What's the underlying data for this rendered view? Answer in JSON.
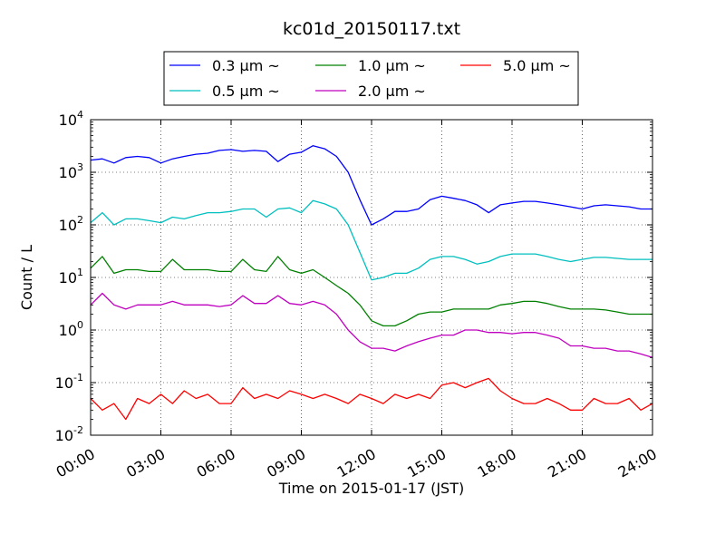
{
  "chart_data": {
    "type": "line",
    "title": "kc01d_20150117.txt",
    "xlabel": "Time on 2015-01-17 (JST)",
    "ylabel": "Count / L",
    "y_scale": "log",
    "ylim": [
      0.01,
      10000
    ],
    "y_tick_labels": [
      {
        "value": 0.01,
        "base": "10",
        "exp": "-2"
      },
      {
        "value": 0.1,
        "base": "10",
        "exp": "-1"
      },
      {
        "value": 1,
        "base": "10",
        "exp": "0"
      },
      {
        "value": 10,
        "base": "10",
        "exp": "1"
      },
      {
        "value": 100,
        "base": "10",
        "exp": "2"
      },
      {
        "value": 1000,
        "base": "10",
        "exp": "3"
      },
      {
        "value": 10000,
        "base": "10",
        "exp": "4"
      }
    ],
    "xlim": [
      "00:00",
      "24:00"
    ],
    "x_tick_labels": [
      "00:00",
      "03:00",
      "06:00",
      "09:00",
      "12:00",
      "15:00",
      "18:00",
      "21:00",
      "24:00"
    ],
    "grid": true,
    "legend_position": "top-center",
    "series": [
      {
        "name": "0.3 μm ~",
        "color": "#0000ff",
        "points": [
          [
            "00:00",
            1700
          ],
          [
            "00:30",
            1800
          ],
          [
            "01:00",
            1500
          ],
          [
            "01:30",
            1900
          ],
          [
            "02:00",
            2000
          ],
          [
            "02:30",
            1900
          ],
          [
            "03:00",
            1500
          ],
          [
            "03:30",
            1800
          ],
          [
            "04:00",
            2000
          ],
          [
            "04:30",
            2200
          ],
          [
            "05:00",
            2300
          ],
          [
            "05:30",
            2600
          ],
          [
            "06:00",
            2700
          ],
          [
            "06:30",
            2500
          ],
          [
            "07:00",
            2600
          ],
          [
            "07:30",
            2500
          ],
          [
            "08:00",
            1600
          ],
          [
            "08:30",
            2200
          ],
          [
            "09:00",
            2400
          ],
          [
            "09:30",
            3200
          ],
          [
            "10:00",
            2800
          ],
          [
            "10:30",
            2000
          ],
          [
            "11:00",
            1000
          ],
          [
            "11:30",
            300
          ],
          [
            "11:55",
            120
          ],
          [
            "12:00",
            100
          ],
          [
            "12:30",
            130
          ],
          [
            "13:00",
            180
          ],
          [
            "13:30",
            180
          ],
          [
            "14:00",
            200
          ],
          [
            "14:30",
            300
          ],
          [
            "15:00",
            350
          ],
          [
            "15:30",
            320
          ],
          [
            "16:00",
            290
          ],
          [
            "16:30",
            240
          ],
          [
            "17:00",
            170
          ],
          [
            "17:30",
            240
          ],
          [
            "18:00",
            260
          ],
          [
            "18:30",
            280
          ],
          [
            "19:00",
            280
          ],
          [
            "19:30",
            260
          ],
          [
            "20:00",
            240
          ],
          [
            "20:30",
            220
          ],
          [
            "21:00",
            200
          ],
          [
            "21:30",
            230
          ],
          [
            "22:00",
            240
          ],
          [
            "22:30",
            230
          ],
          [
            "23:00",
            220
          ],
          [
            "23:30",
            200
          ],
          [
            "24:00",
            200
          ]
        ]
      },
      {
        "name": "0.5 μm ~",
        "color": "#00bfbf",
        "points": [
          [
            "00:00",
            110
          ],
          [
            "00:30",
            170
          ],
          [
            "01:00",
            100
          ],
          [
            "01:30",
            130
          ],
          [
            "02:00",
            130
          ],
          [
            "02:30",
            120
          ],
          [
            "03:00",
            110
          ],
          [
            "03:30",
            140
          ],
          [
            "04:00",
            130
          ],
          [
            "04:30",
            150
          ],
          [
            "05:00",
            170
          ],
          [
            "05:30",
            170
          ],
          [
            "06:00",
            180
          ],
          [
            "06:30",
            200
          ],
          [
            "07:00",
            200
          ],
          [
            "07:30",
            140
          ],
          [
            "08:00",
            200
          ],
          [
            "08:30",
            210
          ],
          [
            "09:00",
            170
          ],
          [
            "09:30",
            290
          ],
          [
            "10:00",
            250
          ],
          [
            "10:30",
            200
          ],
          [
            "11:00",
            100
          ],
          [
            "11:30",
            30
          ],
          [
            "12:00",
            9
          ],
          [
            "12:30",
            10
          ],
          [
            "13:00",
            12
          ],
          [
            "13:30",
            12
          ],
          [
            "14:00",
            15
          ],
          [
            "14:30",
            22
          ],
          [
            "15:00",
            25
          ],
          [
            "15:30",
            25
          ],
          [
            "16:00",
            22
          ],
          [
            "16:30",
            18
          ],
          [
            "17:00",
            20
          ],
          [
            "17:30",
            25
          ],
          [
            "18:00",
            28
          ],
          [
            "18:30",
            28
          ],
          [
            "19:00",
            28
          ],
          [
            "19:30",
            25
          ],
          [
            "20:00",
            22
          ],
          [
            "20:30",
            20
          ],
          [
            "21:00",
            22
          ],
          [
            "21:30",
            24
          ],
          [
            "22:00",
            24
          ],
          [
            "22:30",
            23
          ],
          [
            "23:00",
            22
          ],
          [
            "23:30",
            22
          ],
          [
            "24:00",
            22
          ]
        ]
      },
      {
        "name": "1.0 μm ~",
        "color": "#008000",
        "points": [
          [
            "00:00",
            15
          ],
          [
            "00:30",
            25
          ],
          [
            "01:00",
            12
          ],
          [
            "01:30",
            14
          ],
          [
            "02:00",
            14
          ],
          [
            "02:30",
            13
          ],
          [
            "03:00",
            13
          ],
          [
            "03:30",
            22
          ],
          [
            "04:00",
            14
          ],
          [
            "04:30",
            14
          ],
          [
            "05:00",
            14
          ],
          [
            "05:30",
            13
          ],
          [
            "06:00",
            13
          ],
          [
            "06:30",
            22
          ],
          [
            "07:00",
            14
          ],
          [
            "07:30",
            13
          ],
          [
            "08:00",
            25
          ],
          [
            "08:30",
            14
          ],
          [
            "09:00",
            12
          ],
          [
            "09:30",
            14
          ],
          [
            "10:00",
            10
          ],
          [
            "10:30",
            7
          ],
          [
            "11:00",
            5
          ],
          [
            "11:30",
            3
          ],
          [
            "12:00",
            1.5
          ],
          [
            "12:30",
            1.2
          ],
          [
            "13:00",
            1.2
          ],
          [
            "13:30",
            1.5
          ],
          [
            "14:00",
            2
          ],
          [
            "14:30",
            2.2
          ],
          [
            "15:00",
            2.2
          ],
          [
            "15:30",
            2.5
          ],
          [
            "16:00",
            2.5
          ],
          [
            "16:30",
            2.5
          ],
          [
            "17:00",
            2.5
          ],
          [
            "17:30",
            3
          ],
          [
            "18:00",
            3.2
          ],
          [
            "18:30",
            3.5
          ],
          [
            "19:00",
            3.5
          ],
          [
            "19:30",
            3.2
          ],
          [
            "20:00",
            2.8
          ],
          [
            "20:30",
            2.5
          ],
          [
            "21:00",
            2.5
          ],
          [
            "21:30",
            2.5
          ],
          [
            "22:00",
            2.4
          ],
          [
            "22:30",
            2.2
          ],
          [
            "23:00",
            2.0
          ],
          [
            "23:30",
            2.0
          ],
          [
            "24:00",
            2.0
          ]
        ]
      },
      {
        "name": "2.0 μm ~",
        "color": "#bf00bf",
        "points": [
          [
            "00:00",
            3
          ],
          [
            "00:30",
            5
          ],
          [
            "01:00",
            3
          ],
          [
            "01:30",
            2.5
          ],
          [
            "02:00",
            3
          ],
          [
            "02:30",
            3
          ],
          [
            "03:00",
            3
          ],
          [
            "03:30",
            3.5
          ],
          [
            "04:00",
            3
          ],
          [
            "04:30",
            3
          ],
          [
            "05:00",
            3
          ],
          [
            "05:30",
            2.8
          ],
          [
            "06:00",
            3
          ],
          [
            "06:30",
            4.5
          ],
          [
            "07:00",
            3.2
          ],
          [
            "07:30",
            3.2
          ],
          [
            "08:00",
            4.5
          ],
          [
            "08:30",
            3.2
          ],
          [
            "09:00",
            3
          ],
          [
            "09:30",
            3.5
          ],
          [
            "10:00",
            3
          ],
          [
            "10:30",
            2
          ],
          [
            "11:00",
            1
          ],
          [
            "11:30",
            0.6
          ],
          [
            "12:00",
            0.45
          ],
          [
            "12:30",
            0.45
          ],
          [
            "13:00",
            0.4
          ],
          [
            "13:30",
            0.5
          ],
          [
            "14:00",
            0.6
          ],
          [
            "14:30",
            0.7
          ],
          [
            "15:00",
            0.8
          ],
          [
            "15:30",
            0.8
          ],
          [
            "16:00",
            1.0
          ],
          [
            "16:30",
            1.0
          ],
          [
            "17:00",
            0.9
          ],
          [
            "17:30",
            0.9
          ],
          [
            "18:00",
            0.85
          ],
          [
            "18:30",
            0.9
          ],
          [
            "19:00",
            0.9
          ],
          [
            "19:30",
            0.8
          ],
          [
            "20:00",
            0.7
          ],
          [
            "20:30",
            0.5
          ],
          [
            "21:00",
            0.5
          ],
          [
            "21:30",
            0.45
          ],
          [
            "22:00",
            0.45
          ],
          [
            "22:30",
            0.4
          ],
          [
            "23:00",
            0.4
          ],
          [
            "23:30",
            0.35
          ],
          [
            "24:00",
            0.3
          ]
        ]
      },
      {
        "name": "5.0 μm ~",
        "color": "#ff0000",
        "points": [
          [
            "00:00",
            0.05
          ],
          [
            "00:30",
            0.03
          ],
          [
            "01:00",
            0.04
          ],
          [
            "01:30",
            0.02
          ],
          [
            "02:00",
            0.05
          ],
          [
            "02:30",
            0.04
          ],
          [
            "03:00",
            0.06
          ],
          [
            "03:30",
            0.04
          ],
          [
            "04:00",
            0.07
          ],
          [
            "04:30",
            0.05
          ],
          [
            "05:00",
            0.06
          ],
          [
            "05:30",
            0.04
          ],
          [
            "06:00",
            0.04
          ],
          [
            "06:30",
            0.08
          ],
          [
            "07:00",
            0.05
          ],
          [
            "07:30",
            0.06
          ],
          [
            "08:00",
            0.05
          ],
          [
            "08:30",
            0.07
          ],
          [
            "09:00",
            0.06
          ],
          [
            "09:30",
            0.05
          ],
          [
            "10:00",
            0.06
          ],
          [
            "10:30",
            0.05
          ],
          [
            "11:00",
            0.04
          ],
          [
            "11:30",
            0.06
          ],
          [
            "12:00",
            0.05
          ],
          [
            "12:30",
            0.04
          ],
          [
            "13:00",
            0.06
          ],
          [
            "13:30",
            0.05
          ],
          [
            "14:00",
            0.06
          ],
          [
            "14:30",
            0.05
          ],
          [
            "15:00",
            0.09
          ],
          [
            "15:30",
            0.1
          ],
          [
            "16:00",
            0.08
          ],
          [
            "16:30",
            0.1
          ],
          [
            "17:00",
            0.12
          ],
          [
            "17:30",
            0.07
          ],
          [
            "18:00",
            0.05
          ],
          [
            "18:30",
            0.04
          ],
          [
            "19:00",
            0.04
          ],
          [
            "19:30",
            0.05
          ],
          [
            "20:00",
            0.04
          ],
          [
            "20:30",
            0.03
          ],
          [
            "21:00",
            0.03
          ],
          [
            "21:30",
            0.05
          ],
          [
            "22:00",
            0.04
          ],
          [
            "22:30",
            0.04
          ],
          [
            "23:00",
            0.05
          ],
          [
            "23:30",
            0.03
          ],
          [
            "24:00",
            0.04
          ]
        ]
      }
    ]
  }
}
